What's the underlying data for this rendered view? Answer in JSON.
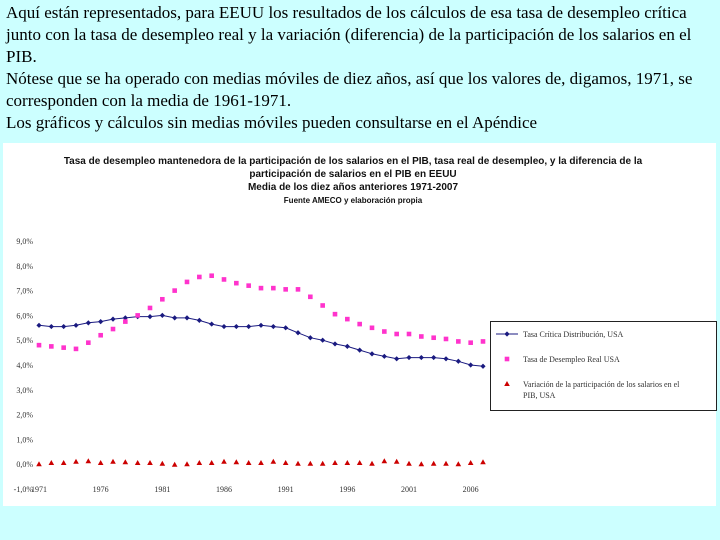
{
  "intro": {
    "p1": "Aquí están representados, para EEUU los resultados de los cálculos de esa tasa de desempleo crítica junto con la tasa de desempleo real y la variación (diferencia) de la participación de los salarios en el PIB.",
    "p2": "Nótese que se ha operado con medias móviles de diez años, así que los valores de, digamos, 1971, se corresponden con la media de 1961-1971.",
    "p3": "Los gráficos y cálculos sin medias móviles pueden consultarse en el Apéndice"
  },
  "colors": {
    "page_background": "#ccffff",
    "series_critical": "#1a1a80",
    "series_real": "#ff33cc",
    "series_variation": "#cc0000"
  },
  "chart_data": {
    "type": "line",
    "title": "Tasa de desempleo mantenedora de la participación de los salarios en el PIB, tasa real de desempleo, y la diferencia de la participación de salarios en el PIB en EEUU",
    "subtitle": "Media de los diez años anteriores 1971-2007",
    "source": "Fuente AMECO y elaboración propia",
    "y_ticks": [
      "9,0%",
      "8,0%",
      "7,0%",
      "6,0%",
      "5,0%",
      "4,0%",
      "3,0%",
      "2,0%",
      "1,0%",
      "0,0%",
      "-1,0%"
    ],
    "x_ticks": [
      "1971",
      "1976",
      "1981",
      "1986",
      "1991",
      "1996",
      "2001",
      "2006"
    ],
    "x_tick_years": [
      1971,
      1976,
      1981,
      1986,
      1991,
      1996,
      2001,
      2006
    ],
    "ylim": [
      -1.0,
      9.0
    ],
    "xlim": [
      1971,
      2007
    ],
    "legend_position": "right",
    "x": [
      1971,
      1972,
      1973,
      1974,
      1975,
      1976,
      1977,
      1978,
      1979,
      1980,
      1981,
      1982,
      1983,
      1984,
      1985,
      1986,
      1987,
      1988,
      1989,
      1990,
      1991,
      1992,
      1993,
      1994,
      1995,
      1996,
      1997,
      1998,
      1999,
      2000,
      2001,
      2002,
      2003,
      2004,
      2005,
      2006,
      2007
    ],
    "series": [
      {
        "name": "Tasa Crítica Distribución, USA",
        "marker": "diamond",
        "values": [
          5.6,
          5.55,
          5.55,
          5.6,
          5.7,
          5.75,
          5.85,
          5.9,
          5.95,
          5.95,
          6.0,
          5.9,
          5.9,
          5.8,
          5.65,
          5.55,
          5.55,
          5.55,
          5.6,
          5.55,
          5.5,
          5.3,
          5.1,
          5.0,
          4.85,
          4.75,
          4.6,
          4.45,
          4.35,
          4.25,
          4.3,
          4.3,
          4.3,
          4.25,
          4.15,
          4.0,
          3.95
        ]
      },
      {
        "name": "Tasa de Desempleo Real USA",
        "marker": "square",
        "values": [
          4.8,
          4.75,
          4.7,
          4.65,
          4.9,
          5.2,
          5.45,
          5.75,
          6.0,
          6.3,
          6.65,
          7.0,
          7.35,
          7.55,
          7.6,
          7.45,
          7.3,
          7.2,
          7.1,
          7.1,
          7.05,
          7.05,
          6.75,
          6.4,
          6.05,
          5.85,
          5.65,
          5.5,
          5.35,
          5.25,
          5.25,
          5.15,
          5.1,
          5.05,
          4.95,
          4.9,
          4.95
        ]
      },
      {
        "name": "Variación de la participación de los salarios en el PIB, USA",
        "marker": "triangle",
        "values": [
          0.0,
          0.05,
          0.05,
          0.1,
          0.12,
          0.05,
          0.1,
          0.08,
          0.05,
          0.05,
          0.02,
          -0.02,
          0.0,
          0.05,
          0.05,
          0.1,
          0.08,
          0.05,
          0.05,
          0.1,
          0.05,
          0.02,
          0.02,
          0.02,
          0.05,
          0.05,
          0.05,
          0.02,
          0.12,
          0.1,
          0.02,
          0.0,
          0.02,
          0.02,
          0.0,
          0.05,
          0.08
        ]
      }
    ]
  }
}
